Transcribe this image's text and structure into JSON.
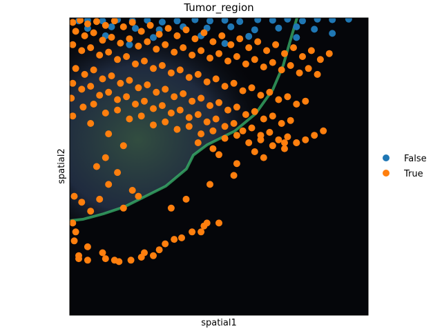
{
  "chart_data": {
    "type": "scatter",
    "title": "Tumor_region",
    "xlabel": "spatial1",
    "ylabel": "spatial2",
    "xlim": [
      0,
      1000
    ],
    "ylim": [
      0,
      1000
    ],
    "y_inverted": true,
    "grid": false,
    "legend_position": "right",
    "background": "fluorescence tissue image",
    "series": [
      {
        "name": "False",
        "color": "#1f77b4",
        "points": [
          [
            30,
            10
          ],
          [
            60,
            8
          ],
          [
            110,
            10
          ],
          [
            160,
            6
          ],
          [
            210,
            10
          ],
          [
            260,
            8
          ],
          [
            310,
            14
          ],
          [
            360,
            10
          ],
          [
            420,
            6
          ],
          [
            470,
            10
          ],
          [
            520,
            8
          ],
          [
            570,
            12
          ],
          [
            630,
            6
          ],
          [
            680,
            8
          ],
          [
            730,
            4
          ],
          [
            780,
            10
          ],
          [
            830,
            4
          ],
          [
            880,
            6
          ],
          [
            935,
            4
          ],
          [
            60,
            35
          ],
          [
            140,
            30
          ],
          [
            220,
            35
          ],
          [
            300,
            40
          ],
          [
            380,
            30
          ],
          [
            460,
            34
          ],
          [
            540,
            30
          ],
          [
            620,
            40
          ],
          [
            700,
            34
          ],
          [
            760,
            30
          ],
          [
            820,
            38
          ],
          [
            120,
            60
          ],
          [
            280,
            66
          ],
          [
            440,
            60
          ],
          [
            600,
            62
          ],
          [
            760,
            66
          ],
          [
            880,
            52
          ],
          [
            200,
            90
          ],
          [
            520,
            86
          ]
        ]
      },
      {
        "name": "True",
        "color": "#ff7f0e",
        "points": [
          [
            10,
            15
          ],
          [
            35,
            8
          ],
          [
            60,
            20
          ],
          [
            90,
            12
          ],
          [
            120,
            25
          ],
          [
            150,
            10
          ],
          [
            180,
            30
          ],
          [
            210,
            15
          ],
          [
            240,
            45
          ],
          [
            270,
            25
          ],
          [
            300,
            55
          ],
          [
            330,
            35
          ],
          [
            360,
            60
          ],
          [
            390,
            40
          ],
          [
            420,
            70
          ],
          [
            450,
            50
          ],
          [
            480,
            80
          ],
          [
            510,
            60
          ],
          [
            540,
            90
          ],
          [
            570,
            70
          ],
          [
            600,
            100
          ],
          [
            630,
            80
          ],
          [
            660,
            110
          ],
          [
            690,
            90
          ],
          [
            720,
            120
          ],
          [
            750,
            100
          ],
          [
            780,
            130
          ],
          [
            810,
            110
          ],
          [
            840,
            140
          ],
          [
            870,
            120
          ],
          [
            20,
            45
          ],
          [
            50,
            60
          ],
          [
            80,
            50
          ],
          [
            110,
            75
          ],
          [
            140,
            65
          ],
          [
            170,
            85
          ],
          [
            200,
            70
          ],
          [
            230,
            95
          ],
          [
            260,
            80
          ],
          [
            290,
            105
          ],
          [
            320,
            90
          ],
          [
            350,
            115
          ],
          [
            380,
            100
          ],
          [
            410,
            125
          ],
          [
            440,
            110
          ],
          [
            470,
            135
          ],
          [
            500,
            120
          ],
          [
            530,
            145
          ],
          [
            560,
            130
          ],
          [
            590,
            155
          ],
          [
            620,
            140
          ],
          [
            650,
            165
          ],
          [
            680,
            150
          ],
          [
            710,
            175
          ],
          [
            740,
            160
          ],
          [
            770,
            185
          ],
          [
            800,
            170
          ],
          [
            830,
            190
          ],
          [
            10,
            90
          ],
          [
            40,
            110
          ],
          [
            70,
            100
          ],
          [
            100,
            125
          ],
          [
            130,
            115
          ],
          [
            160,
            140
          ],
          [
            190,
            130
          ],
          [
            220,
            155
          ],
          [
            250,
            145
          ],
          [
            280,
            170
          ],
          [
            310,
            160
          ],
          [
            340,
            185
          ],
          [
            370,
            175
          ],
          [
            400,
            200
          ],
          [
            430,
            190
          ],
          [
            460,
            215
          ],
          [
            490,
            205
          ],
          [
            520,
            230
          ],
          [
            550,
            220
          ],
          [
            580,
            245
          ],
          [
            610,
            235
          ],
          [
            640,
            260
          ],
          [
            670,
            250
          ],
          [
            700,
            275
          ],
          [
            730,
            265
          ],
          [
            760,
            290
          ],
          [
            790,
            280
          ],
          [
            20,
            170
          ],
          [
            50,
            190
          ],
          [
            80,
            175
          ],
          [
            110,
            205
          ],
          [
            140,
            195
          ],
          [
            170,
            220
          ],
          [
            200,
            210
          ],
          [
            230,
            235
          ],
          [
            260,
            225
          ],
          [
            290,
            250
          ],
          [
            320,
            240
          ],
          [
            350,
            265
          ],
          [
            380,
            255
          ],
          [
            410,
            280
          ],
          [
            440,
            270
          ],
          [
            470,
            295
          ],
          [
            500,
            285
          ],
          [
            530,
            310
          ],
          [
            560,
            300
          ],
          [
            590,
            325
          ],
          [
            620,
            315
          ],
          [
            650,
            340
          ],
          [
            680,
            330
          ],
          [
            710,
            355
          ],
          [
            740,
            345
          ],
          [
            10,
            220
          ],
          [
            40,
            240
          ],
          [
            70,
            230
          ],
          [
            100,
            260
          ],
          [
            130,
            250
          ],
          [
            160,
            275
          ],
          [
            190,
            265
          ],
          [
            220,
            290
          ],
          [
            250,
            280
          ],
          [
            280,
            305
          ],
          [
            310,
            295
          ],
          [
            340,
            320
          ],
          [
            370,
            310
          ],
          [
            400,
            335
          ],
          [
            430,
            325
          ],
          [
            460,
            350
          ],
          [
            490,
            340
          ],
          [
            520,
            365
          ],
          [
            550,
            355
          ],
          [
            580,
            380
          ],
          [
            610,
            370
          ],
          [
            640,
            395
          ],
          [
            670,
            385
          ],
          [
            700,
            410
          ],
          [
            730,
            400
          ],
          [
            760,
            420
          ],
          [
            790,
            410
          ],
          [
            820,
            395
          ],
          [
            850,
            380
          ],
          [
            5,
            270
          ],
          [
            45,
            300
          ],
          [
            80,
            290
          ],
          [
            120,
            320
          ],
          [
            160,
            310
          ],
          [
            200,
            340
          ],
          [
            240,
            330
          ],
          [
            280,
            360
          ],
          [
            320,
            350
          ],
          [
            360,
            375
          ],
          [
            400,
            365
          ],
          [
            440,
            390
          ],
          [
            480,
            380
          ],
          [
            520,
            405
          ],
          [
            560,
            395
          ],
          [
            600,
            420
          ],
          [
            640,
            410
          ],
          [
            680,
            430
          ],
          [
            720,
            420
          ],
          [
            10,
            330
          ],
          [
            70,
            355
          ],
          [
            130,
            390
          ],
          [
            180,
            430
          ],
          [
            120,
            470
          ],
          [
            90,
            500
          ],
          [
            160,
            520
          ],
          [
            130,
            560
          ],
          [
            210,
            580
          ],
          [
            100,
            610
          ],
          [
            70,
            650
          ],
          [
            180,
            640
          ],
          [
            230,
            600
          ],
          [
            40,
            620
          ],
          [
            15,
            600
          ],
          [
            10,
            690
          ],
          [
            20,
            720
          ],
          [
            15,
            750
          ],
          [
            60,
            770
          ],
          [
            110,
            790
          ],
          [
            30,
            800
          ],
          [
            120,
            810
          ],
          [
            165,
            820
          ],
          [
            205,
            815
          ],
          [
            250,
            790
          ],
          [
            280,
            800
          ],
          [
            320,
            760
          ],
          [
            375,
            740
          ],
          [
            440,
            720
          ],
          [
            500,
            690
          ],
          [
            340,
            640
          ],
          [
            390,
            610
          ],
          [
            460,
            690
          ],
          [
            470,
            560
          ],
          [
            550,
            530
          ],
          [
            560,
            490
          ],
          [
            650,
            470
          ],
          [
            720,
            440
          ],
          [
            760,
            420
          ],
          [
            500,
            460
          ],
          [
            620,
            450
          ],
          [
            430,
            420
          ],
          [
            480,
            440
          ],
          [
            30,
            810
          ],
          [
            60,
            815
          ],
          [
            150,
            815
          ],
          [
            240,
            805
          ],
          [
            300,
            780
          ],
          [
            350,
            745
          ],
          [
            410,
            720
          ],
          [
            450,
            700
          ]
        ]
      }
    ]
  }
}
